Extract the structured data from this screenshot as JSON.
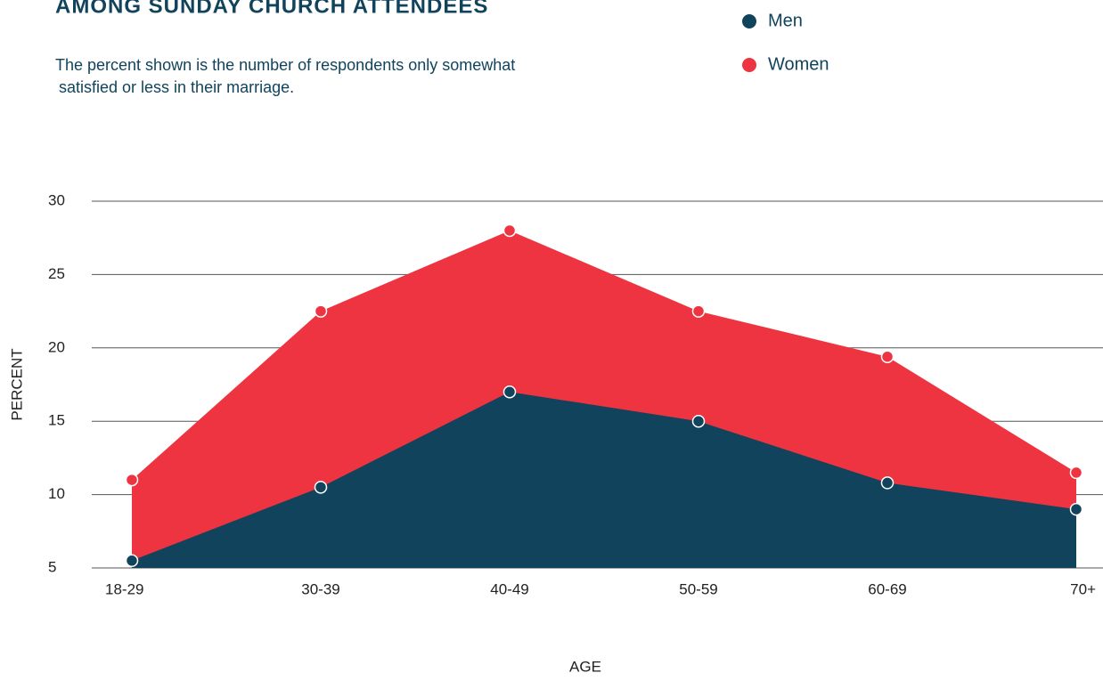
{
  "chart_data": {
    "type": "area",
    "title": "AMONG SUNDAY CHURCH ATTENDEES",
    "subtitle": [
      "The percent shown is the number of respondents only somewhat",
      "satisfied or less in their marriage."
    ],
    "x_label": "AGE",
    "y_label": "PERCENT",
    "categories": [
      "18-29",
      "30-39",
      "40-49",
      "50-59",
      "60-69",
      "70+"
    ],
    "series": [
      {
        "name": "Women",
        "color": "#ee3440",
        "values": [
          11,
          22.5,
          28,
          22.5,
          19.4,
          11.5
        ]
      },
      {
        "name": "Men",
        "color": "#11445c",
        "values": [
          5.5,
          10.5,
          17,
          15,
          10.8,
          9
        ]
      }
    ],
    "legend_order": [
      1,
      0
    ],
    "ylim": [
      5,
      30
    ],
    "yticks": [
      5,
      10,
      15,
      20,
      25,
      30
    ],
    "grid": true
  }
}
